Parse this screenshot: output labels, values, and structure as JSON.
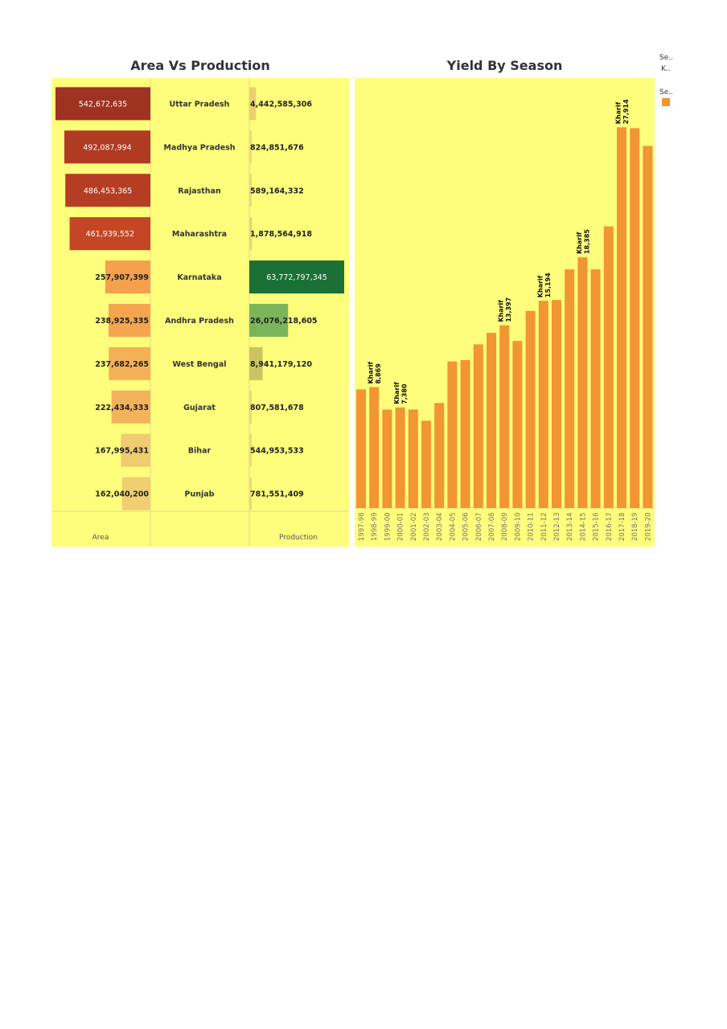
{
  "dashboard": {
    "left_title": "Area Vs Production",
    "right_title": "Yield By Season",
    "legend_top": [
      "Se..",
      "K.."
    ],
    "legend_color_title": "Se..",
    "legend_color": "#f29533",
    "panel_background": "#fefd7c"
  },
  "chart_data": [
    {
      "type": "bar",
      "title": "Area Vs Production",
      "categories": [
        "Uttar Pradesh",
        "Madhya Pradesh",
        "Rajasthan",
        "Maharashtra",
        "Karnataka",
        "Andhra Pradesh",
        "West Bengal",
        "Gujarat",
        "Bihar",
        "Punjab"
      ],
      "series": [
        {
          "name": "Area",
          "values": [
            542672635,
            492087994,
            486453365,
            461939552,
            257907399,
            238925335,
            237682265,
            222434333,
            167995431,
            162040200
          ],
          "labels": [
            "542,672,635",
            "492,087,994",
            "486,453,365",
            "461,939,552",
            "257,907,399",
            "238,925,335",
            "237,682,265",
            "222,434,333",
            "167,995,431",
            "162,040,200"
          ],
          "colors": [
            "#9e3322",
            "#b03a22",
            "#b53d23",
            "#c44625",
            "#f5a04d",
            "#f5a54f",
            "#f4b157",
            "#f3b35c",
            "#efcc6f",
            "#efcf72"
          ]
        },
        {
          "name": "Production",
          "values": [
            4442585306,
            824851676,
            589164332,
            1878564918,
            63772797345,
            26076218605,
            8941179120,
            807581678,
            544953533,
            781551409
          ],
          "labels": [
            "4,442,585,306",
            "824,851,676",
            "589,164,332",
            "1,878,564,918",
            "63,772,797,345",
            "26,076,218,605",
            "8,941,179,120",
            "807,581,678",
            "544,953,533",
            "781,551,409"
          ],
          "colors": [
            "#eccf6e",
            "#eeda74",
            "#eeda74",
            "#ecd672",
            "#1b7036",
            "#7ab55c",
            "#ccc463",
            "#eeda74",
            "#eeda74",
            "#eeda74"
          ]
        }
      ],
      "xlabel": "",
      "ylabel": ""
    },
    {
      "type": "bar",
      "title": "Yield By Season",
      "categories": [
        "1997-98",
        "1998-99",
        "1999-00",
        "2000-01",
        "2001-02",
        "2002-03",
        "2003-04",
        "2004-05",
        "2005-06",
        "2006-07",
        "2007-08",
        "2008-09",
        "2009-10",
        "2010-11",
        "2011-12",
        "2012-13",
        "2013-14",
        "2014-15",
        "2015-16",
        "2016-17",
        "2017-18",
        "2018-19",
        "2019-20"
      ],
      "series": [
        {
          "name": "Kharif",
          "values": [
            8700,
            8869,
            7220,
            7380,
            7230,
            6400,
            7700,
            10750,
            10850,
            12000,
            12850,
            13397,
            12250,
            14450,
            15194,
            15250,
            17500,
            18385,
            17500,
            20650,
            27914,
            27850,
            26550
          ]
        }
      ],
      "annotations": [
        {
          "category": "1998-99",
          "season": "Kharif",
          "label": "8,869"
        },
        {
          "category": "2000-01",
          "season": "Kharif",
          "label": "7,380"
        },
        {
          "category": "2008-09",
          "season": "Kharif",
          "label": "13,397"
        },
        {
          "category": "2011-12",
          "season": "Kharif",
          "label": "15,194"
        },
        {
          "category": "2014-15",
          "season": "Kharif",
          "label": "18,385"
        },
        {
          "category": "2017-18",
          "season": "Kharif",
          "label": "27,914"
        }
      ],
      "bar_color": "#f29533",
      "ylim": [
        0,
        31000
      ],
      "xlabel": "",
      "ylabel": "",
      "grid": false
    }
  ]
}
